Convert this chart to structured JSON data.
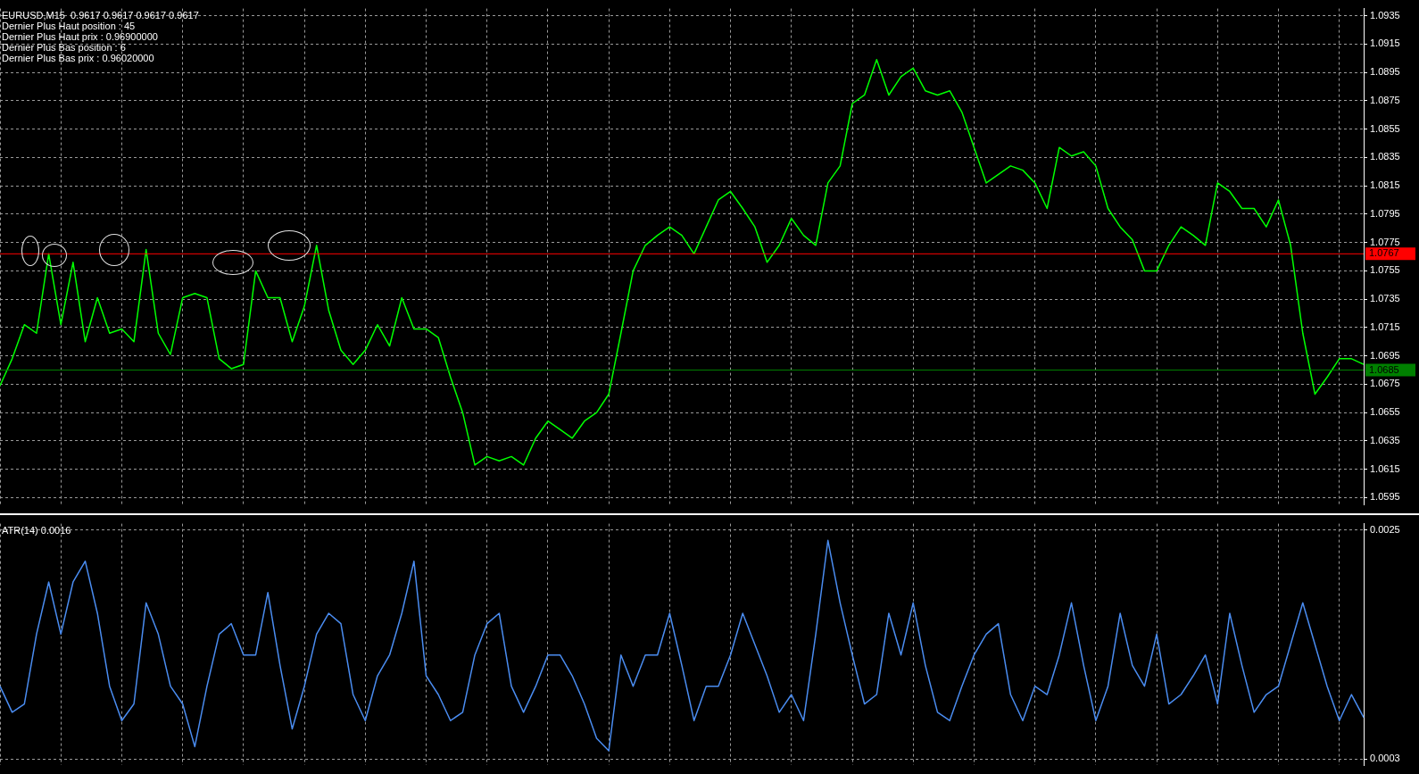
{
  "chart_data": [
    {
      "type": "line",
      "title": "EURUSD,M15  0.9617 0.9617 0.9617 0.9617",
      "annotations": [
        "Dernier Plus Haut position : 45",
        "Dernier Plus Haut prix : 0.96900000",
        "Dernier Plus Bas position : 6",
        "Dernier Plus Bas prix : 0.96020000"
      ],
      "categories": [
        null,
        null,
        null,
        null,
        null,
        null,
        null,
        null,
        null,
        null,
        null,
        null,
        null,
        null,
        null,
        null,
        null,
        null,
        null,
        null,
        null,
        null,
        null,
        null,
        null,
        null,
        null,
        null,
        null,
        null,
        null,
        null,
        null,
        null,
        null,
        null,
        null,
        null,
        null,
        null,
        null,
        null,
        null,
        null,
        null,
        null,
        null,
        null,
        null,
        null,
        null,
        null,
        null,
        null,
        null,
        null,
        null,
        null,
        null,
        null,
        null,
        null,
        null,
        null,
        null,
        null,
        null,
        null,
        null,
        null,
        null,
        null,
        null,
        null,
        null,
        null,
        null,
        null,
        null,
        null,
        null,
        null,
        null,
        null,
        null,
        null,
        null,
        null,
        null,
        null,
        null,
        null,
        null,
        null,
        null,
        null,
        null,
        null,
        null,
        null,
        null,
        null,
        null,
        null,
        null,
        null,
        null,
        null,
        null,
        null,
        null,
        null,
        null
      ],
      "series": [
        {
          "color": "#00ff00",
          "values": [
            1.0674,
            1.0693,
            1.0717,
            1.0711,
            1.0767,
            1.0717,
            1.0761,
            1.0705,
            1.0736,
            1.0711,
            1.0714,
            1.0705,
            1.077,
            1.0711,
            1.0696,
            1.0736,
            1.0739,
            1.0736,
            1.0693,
            1.0686,
            1.0689,
            1.0755,
            1.0736,
            1.0736,
            1.0705,
            1.073,
            1.0773,
            1.0727,
            1.0699,
            1.0689,
            1.0699,
            1.0717,
            1.0702,
            1.0736,
            1.0714,
            1.0714,
            1.0708,
            1.068,
            1.0655,
            1.0618,
            1.0624,
            1.0621,
            1.0624,
            1.0618,
            1.0637,
            1.0649,
            1.0643,
            1.0637,
            1.0649,
            1.0655,
            1.0668,
            1.0711,
            1.0755,
            1.0773,
            1.078,
            1.0786,
            1.078,
            1.0767,
            1.0786,
            1.0805,
            1.0811,
            1.0799,
            1.0786,
            1.0761,
            1.0773,
            1.0792,
            1.078,
            1.0773,
            1.0817,
            1.0829,
            1.0873,
            1.0879,
            1.0904,
            1.0879,
            1.0892,
            1.0898,
            1.0882,
            1.0879,
            1.0882,
            1.0867,
            1.0842,
            1.0817,
            1.0823,
            1.0829,
            1.0826,
            1.0817,
            1.0799,
            1.0842,
            1.0836,
            1.0839,
            1.0829,
            1.0799,
            1.0786,
            1.0777,
            1.0755,
            1.0755,
            1.0773,
            1.0786,
            1.078,
            1.0773,
            1.0817,
            1.0811,
            1.0799,
            1.0799,
            1.0786,
            1.0805,
            1.0773,
            1.0711,
            1.0668,
            1.068,
            1.0693,
            1.0693,
            1.0689
          ]
        }
      ],
      "ylim": [
        1.059,
        1.094
      ],
      "yticks": [
        1.0595,
        1.0615,
        1.0635,
        1.0655,
        1.0675,
        1.0695,
        1.0715,
        1.0735,
        1.0755,
        1.0775,
        1.0795,
        1.0815,
        1.0835,
        1.0855,
        1.0875,
        1.0895,
        1.0915,
        1.0935
      ],
      "ref_lines": [
        {
          "axis": "y",
          "value": 1.0767,
          "label": "1.0767",
          "color": "#ff0000"
        },
        {
          "axis": "y",
          "value": 1.0685,
          "label": "1.0685",
          "color": "#008000"
        }
      ],
      "grid": true,
      "legend": false,
      "marker": "none",
      "tick_labels": "y"
    },
    {
      "type": "line",
      "title": "ATR(14) 0.0016",
      "categories": [
        null,
        null,
        null,
        null,
        null,
        null,
        null,
        null,
        null,
        null,
        null,
        null,
        null,
        null,
        null,
        null,
        null,
        null,
        null,
        null,
        null,
        null,
        null,
        null,
        null,
        null,
        null,
        null,
        null,
        null,
        null,
        null,
        null,
        null,
        null,
        null,
        null,
        null,
        null,
        null,
        null,
        null,
        null,
        null,
        null,
        null,
        null,
        null,
        null,
        null,
        null,
        null,
        null,
        null,
        null,
        null,
        null,
        null,
        null,
        null,
        null,
        null,
        null,
        null,
        null,
        null,
        null,
        null,
        null,
        null,
        null,
        null,
        null,
        null,
        null,
        null,
        null,
        null,
        null,
        null,
        null,
        null,
        null,
        null,
        null,
        null,
        null,
        null,
        null,
        null,
        null,
        null,
        null,
        null,
        null,
        null,
        null,
        null,
        null,
        null,
        null,
        null,
        null,
        null,
        null,
        null,
        null,
        null,
        null,
        null,
        null,
        null,
        null
      ],
      "series": [
        {
          "color": "#4a8cf0",
          "values": [
            0.001,
            0.00075,
            0.00083,
            0.0015,
            0.002,
            0.0015,
            0.002,
            0.0022,
            0.0017,
            0.001,
            0.00067,
            0.00083,
            0.0018,
            0.0015,
            0.001,
            0.00083,
            0.00042,
            0.001,
            0.0015,
            0.0016,
            0.0013,
            0.0013,
            0.0019,
            0.0012,
            0.00059,
            0.001,
            0.0015,
            0.0017,
            0.0016,
            0.00092,
            0.00067,
            0.0011,
            0.0013,
            0.0017,
            0.0022,
            0.0011,
            0.00092,
            0.00067,
            0.00075,
            0.0013,
            0.0016,
            0.0017,
            0.001,
            0.00075,
            0.001,
            0.0013,
            0.0013,
            0.0011,
            0.00083,
            0.0005,
            0.00038,
            0.0013,
            0.001,
            0.0013,
            0.0013,
            0.0017,
            0.0012,
            0.00067,
            0.001,
            0.001,
            0.0013,
            0.0017,
            0.0014,
            0.0011,
            0.00075,
            0.00092,
            0.00067,
            0.0015,
            0.0024,
            0.0018,
            0.0013,
            0.00083,
            0.00092,
            0.0017,
            0.0013,
            0.0018,
            0.0012,
            0.00075,
            0.00067,
            0.001,
            0.0013,
            0.0015,
            0.0016,
            0.00092,
            0.00067,
            0.001,
            0.00092,
            0.0013,
            0.0018,
            0.0012,
            0.00067,
            0.001,
            0.0017,
            0.0012,
            0.001,
            0.0015,
            0.00083,
            0.00092,
            0.0011,
            0.0013,
            0.00083,
            0.0017,
            0.0012,
            0.00075,
            0.00092,
            0.001,
            0.0014,
            0.0018,
            0.0014,
            0.001,
            0.00067,
            0.00092,
            0.0007
          ]
        }
      ],
      "ylim": [
        0.00024,
        0.00256
      ],
      "yticks": [
        0.0025,
        0.0003
      ],
      "grid": true,
      "legend": false,
      "marker": "none",
      "tick_labels": "y"
    }
  ]
}
